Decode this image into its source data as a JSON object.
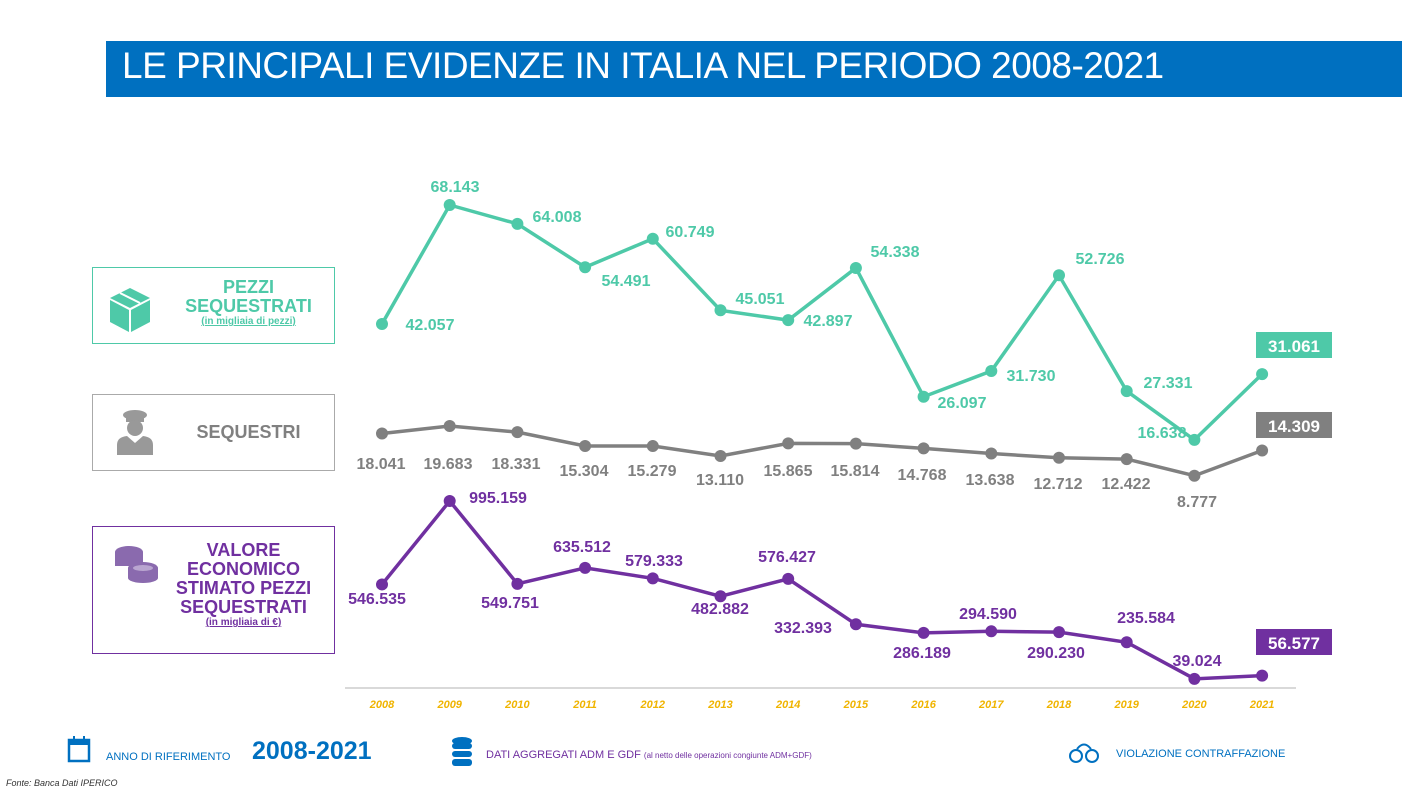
{
  "title": "LE PRINCIPALI EVIDENZE IN ITALIA NEL PERIODO 2008-2021",
  "legend_boxes": [
    {
      "icon": "box-icon",
      "title_lines": [
        "PEZZI",
        "SEQUESTRATI"
      ],
      "subtitle": "(in migliaia di pezzi)",
      "color": "#4ec9a8"
    },
    {
      "icon": "police-officer-icon",
      "title_lines": [
        "SEQUESTRI"
      ],
      "subtitle": "",
      "color": "#808080"
    },
    {
      "icon": "coins-icon",
      "title_lines": [
        "VALORE",
        "ECONOMICO",
        "STIMATO  PEZZI",
        "SEQUESTRATI"
      ],
      "subtitle": "(in migliaia di €)",
      "color": "#7030a0"
    }
  ],
  "chart_data": {
    "type": "line",
    "categories": [
      "2008",
      "2009",
      "2010",
      "2011",
      "2012",
      "2013",
      "2014",
      "2015",
      "2016",
      "2017",
      "2018",
      "2019",
      "2020",
      "2021"
    ],
    "series": [
      {
        "name": "PEZZI SEQUESTRATI (in migliaia di pezzi)",
        "color": "#4ec9a8",
        "values": [
          42057,
          68143,
          64008,
          54491,
          60749,
          45051,
          42897,
          54338,
          26097,
          31730,
          52726,
          27331,
          16638,
          31061
        ],
        "labels": [
          "42.057",
          "68.143",
          "64.008",
          "54.491",
          "60.749",
          "45.051",
          "42.897",
          "54.338",
          "26.097",
          "31.730",
          "52.726",
          "27.331",
          "16.638",
          "31.061"
        ]
      },
      {
        "name": "SEQUESTRI",
        "color": "#808080",
        "values": [
          18041,
          19683,
          18331,
          15304,
          15279,
          13110,
          15865,
          15814,
          14768,
          13638,
          12712,
          12422,
          8777,
          14309
        ],
        "labels": [
          "18.041",
          "19.683",
          "18.331",
          "15.304",
          "15.279",
          "13.110",
          "15.865",
          "15.814",
          "14.768",
          "13.638",
          "12.712",
          "12.422",
          "8.777",
          "14.309"
        ]
      },
      {
        "name": "VALORE ECONOMICO STIMATO PEZZI SEQUESTRATI (in migliaia di €)",
        "color": "#7030a0",
        "values": [
          546535,
          995159,
          549751,
          635512,
          579333,
          482882,
          576427,
          332393,
          286189,
          294590,
          290230,
          235584,
          39024,
          56577
        ],
        "labels": [
          "546.535",
          "995.159",
          "549.751",
          "635.512",
          "579.333",
          "482.882",
          "576.427",
          "332.393",
          "286.189",
          "294.590",
          "290.230",
          "235.584",
          "39.024",
          "56.577"
        ]
      }
    ],
    "category_label_color": "#f0b400",
    "grid": false
  },
  "footer": {
    "anno_label": "ANNO DI RIFERIMENTO",
    "anno_value": "2008-2021",
    "dati_label": "DATI AGGREGATI ADM E GDF",
    "dati_note": "(al netto delle operazioni congiunte ADM+GDF)",
    "violazione": "VIOLAZIONE CONTRAFFAZIONE",
    "fonte": "Fonte: Banca Dati IPERICO"
  }
}
